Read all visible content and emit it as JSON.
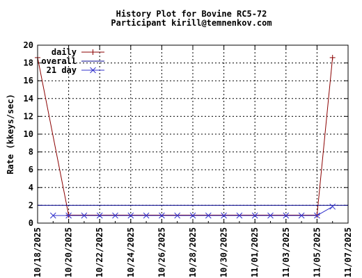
{
  "chart_data": {
    "type": "line",
    "title": "History Plot for Bovine RC5-72",
    "subtitle": "Participant kirill@temnenkov.com",
    "xlabel": "",
    "ylabel": "Rate (kkeys/sec)",
    "ylim": [
      0,
      20
    ],
    "yticks": [
      "0",
      "2",
      "4",
      "6",
      "8",
      "10",
      "12",
      "14",
      "16",
      "18",
      "20"
    ],
    "xlim": [
      "2025-10-18",
      "2025-11-07"
    ],
    "xtick_dates": [
      "2025-10-18",
      "2025-10-20",
      "2025-10-22",
      "2025-10-24",
      "2025-10-26",
      "2025-10-28",
      "2025-10-30",
      "2025-11-01",
      "2025-11-03",
      "2025-11-05",
      "2025-11-07"
    ],
    "xtick_labels": [
      "10/18/2025",
      "10/20/2025",
      "10/22/2025",
      "10/24/2025",
      "10/26/2025",
      "10/28/2025",
      "10/30/2025",
      "11/01/2025",
      "11/03/2025",
      "11/05/2025",
      "11/07/2025"
    ],
    "grid": true,
    "legend_position": "top-left",
    "series": [
      {
        "name": "daily",
        "color": "#8b0000",
        "marker": "plus",
        "points": [
          [
            "2025-10-18",
            18.6
          ],
          [
            "2025-10-20",
            0.9
          ],
          [
            "2025-11-05",
            0.9
          ],
          [
            "2025-11-06",
            18.6
          ]
        ]
      },
      {
        "name": "overall",
        "color": "#00008b",
        "marker": "none",
        "points": [
          [
            "2025-10-18",
            2.0
          ],
          [
            "2025-11-07",
            2.0
          ]
        ]
      },
      {
        "name": "21 day",
        "color": "#3333cc",
        "marker": "x",
        "points": [
          [
            "2025-10-19",
            0.85
          ],
          [
            "2025-10-20",
            0.85
          ],
          [
            "2025-10-21",
            0.85
          ],
          [
            "2025-10-22",
            0.85
          ],
          [
            "2025-10-23",
            0.85
          ],
          [
            "2025-10-24",
            0.85
          ],
          [
            "2025-10-25",
            0.85
          ],
          [
            "2025-10-26",
            0.85
          ],
          [
            "2025-10-27",
            0.85
          ],
          [
            "2025-10-28",
            0.85
          ],
          [
            "2025-10-29",
            0.85
          ],
          [
            "2025-10-30",
            0.85
          ],
          [
            "2025-10-31",
            0.85
          ],
          [
            "2025-11-01",
            0.85
          ],
          [
            "2025-11-02",
            0.85
          ],
          [
            "2025-11-03",
            0.85
          ],
          [
            "2025-11-04",
            0.85
          ],
          [
            "2025-11-05",
            0.85
          ],
          [
            "2025-11-06",
            1.85
          ]
        ]
      }
    ]
  }
}
